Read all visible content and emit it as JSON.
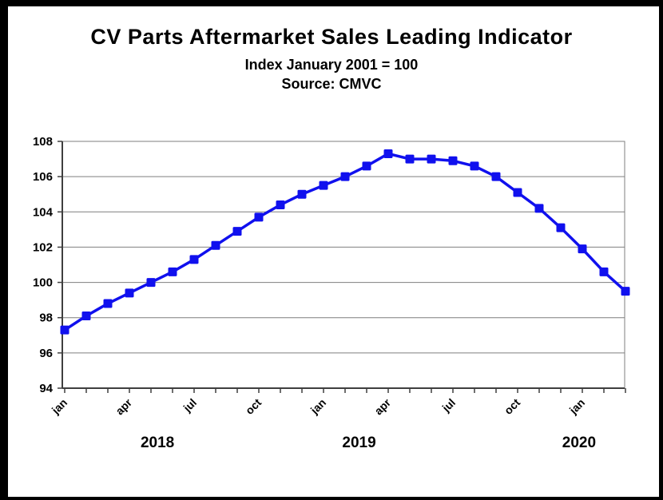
{
  "chart_data": {
    "type": "line",
    "title": "CV Parts Aftermarket Sales Leading Indicator",
    "subtitle": "Index January 2001 = 100",
    "source": "Source: CMVC",
    "categories": [
      "Jan 2018",
      "Feb 2018",
      "Mar 2018",
      "Apr 2018",
      "May 2018",
      "Jun 2018",
      "Jul 2018",
      "Aug 2018",
      "Sep 2018",
      "Oct 2018",
      "Nov 2018",
      "Dec 2018",
      "Jan 2019",
      "Feb 2019",
      "Mar 2019",
      "Apr 2019",
      "May 2019",
      "Jun 2019",
      "Jul 2019",
      "Aug 2019",
      "Sep 2019",
      "Oct 2019",
      "Nov 2019",
      "Dec 2019",
      "Jan 2020",
      "Feb 2020",
      "Mar 2020"
    ],
    "values": [
      97.3,
      98.1,
      98.8,
      99.4,
      100.0,
      100.6,
      101.3,
      102.1,
      102.9,
      103.7,
      104.4,
      105.0,
      105.5,
      106.0,
      106.6,
      107.3,
      107.0,
      107.0,
      106.9,
      106.6,
      106.0,
      105.1,
      104.2,
      103.1,
      101.9,
      100.6,
      99.5
    ],
    "xtick_labels": [
      "jan",
      "",
      "",
      "apr",
      "",
      "",
      "jul",
      "",
      "",
      "oct",
      "",
      "",
      "jan",
      "",
      "",
      "apr",
      "",
      "",
      "jul",
      "",
      "",
      "oct",
      "",
      "",
      "jan",
      "",
      ""
    ],
    "year_labels": [
      {
        "text": "2018",
        "month_index": 4.3
      },
      {
        "text": "2019",
        "month_index": 13.65
      },
      {
        "text": "2020",
        "month_index": 23.85
      }
    ],
    "ylim": [
      94,
      108
    ],
    "ytick_step": 2,
    "ytick_labels": [
      "94",
      "96",
      "98",
      "100",
      "102",
      "104",
      "106",
      "108"
    ],
    "xlabel": "",
    "ylabel": "",
    "grid": "horizontal",
    "legend": "none",
    "marker": "square",
    "colors": {
      "line": "#1010EE",
      "grid": "#7f7f7f",
      "axis": "#3f3f3f",
      "text": "#000000",
      "background": "#ffffff",
      "frame": "#000000"
    }
  }
}
